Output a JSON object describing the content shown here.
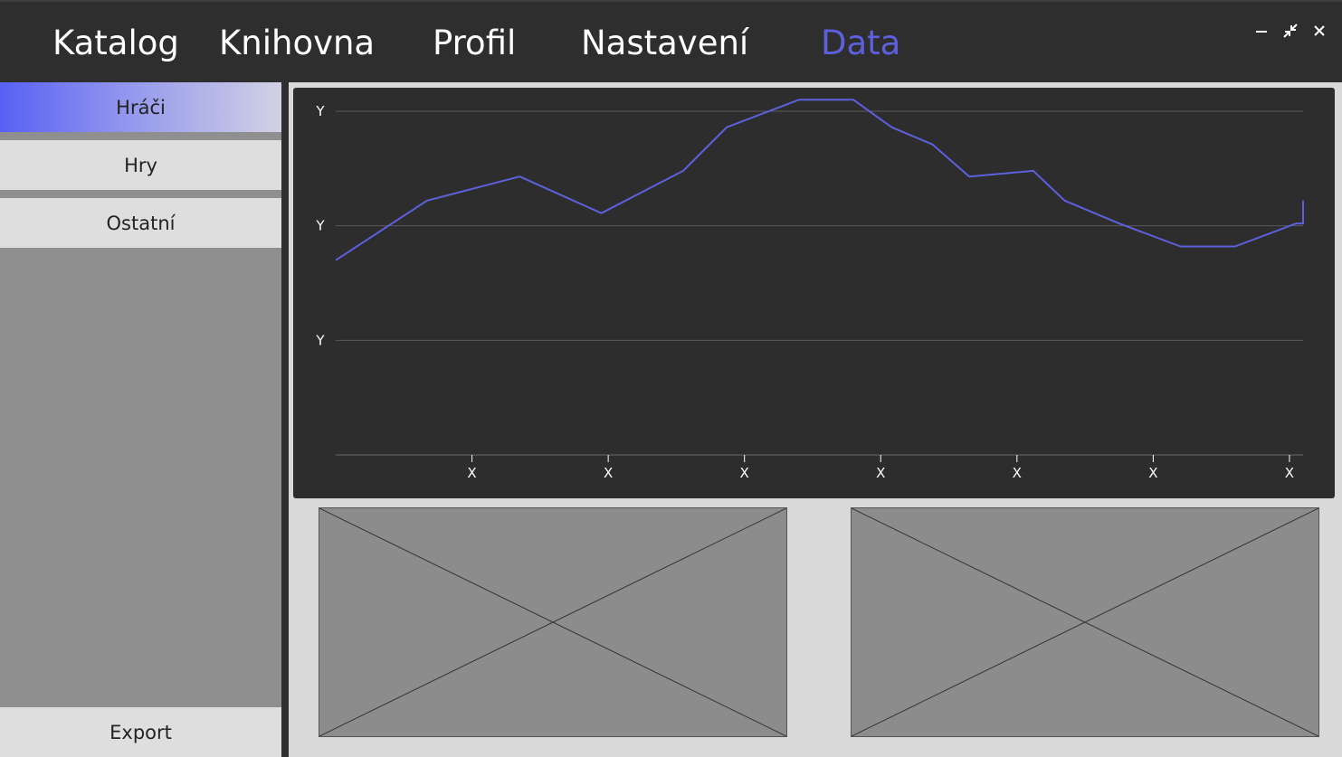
{
  "nav": {
    "items": [
      {
        "label": "Katalog"
      },
      {
        "label": "Knihovna"
      },
      {
        "label": "Profil"
      },
      {
        "label": "Nastavení"
      },
      {
        "label": "Data"
      }
    ],
    "active": "Data",
    "accent_color": "#5d60dd"
  },
  "window_controls": [
    "minimize-icon",
    "restore-icon",
    "close-icon"
  ],
  "sidebar": {
    "items": [
      {
        "label": "Hráči",
        "active": true
      },
      {
        "label": "Hry",
        "active": false
      },
      {
        "label": "Ostatní",
        "active": false
      }
    ],
    "export_label": "Export"
  },
  "chart_data": {
    "type": "line",
    "title": "",
    "xlabel": "",
    "ylabel": "",
    "x_tick_labels": [
      "X",
      "X",
      "X",
      "X",
      "X",
      "X",
      "X"
    ],
    "y_tick_labels": [
      "Y",
      "Y",
      "Y"
    ],
    "grid": true,
    "line_color": "#5d60dd",
    "x": [
      0,
      0.67,
      1.35,
      1.95,
      2.55,
      2.87,
      3.4,
      3.8,
      4.08,
      4.38,
      4.65,
      5.12,
      5.35,
      5.75,
      6.2,
      6.6,
      7.05,
      7.2,
      7.45
    ],
    "values": [
      1.7,
      2.22,
      2.43,
      2.11,
      2.48,
      2.86,
      3.1,
      3.1,
      2.86,
      2.71,
      2.43,
      2.48,
      2.22,
      2.02,
      1.82,
      1.82,
      2.02,
      2.02,
      2.22
    ],
    "xlim": [
      0,
      7.1
    ],
    "ylim": [
      0,
      3
    ]
  },
  "image_placeholders": [
    {
      "name": "image-placeholder-left"
    },
    {
      "name": "image-placeholder-right"
    }
  ]
}
